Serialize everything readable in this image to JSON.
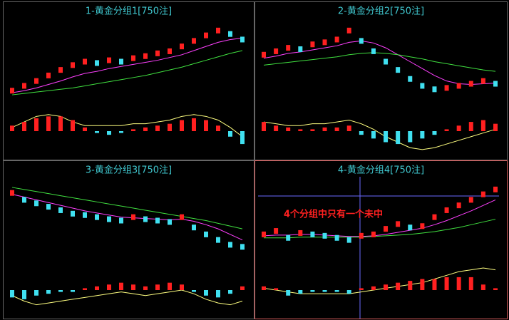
{
  "chart_data": [
    {
      "type": "stock",
      "title": "1-黄金分组1[750注]",
      "ylim": [
        0,
        100
      ],
      "y2lim": [
        -12,
        12
      ],
      "series": [
        {
          "name": "price",
          "color": "#ff2020",
          "values": [
            8,
            15,
            22,
            30,
            38,
            45,
            50,
            48,
            52,
            50,
            55,
            58,
            62,
            65,
            72,
            80,
            88,
            95,
            90,
            82
          ]
        },
        {
          "name": "ma1",
          "color": "#ff40ff",
          "values": [
            5,
            8,
            12,
            17,
            22,
            28,
            33,
            36,
            40,
            43,
            46,
            49,
            52,
            56,
            60,
            66,
            72,
            78,
            82,
            84
          ]
        },
        {
          "name": "ma2",
          "color": "#40e040",
          "values": [
            2,
            4,
            6,
            8,
            10,
            12,
            15,
            18,
            21,
            24,
            27,
            30,
            34,
            38,
            42,
            47,
            52,
            57,
            62,
            66
          ]
        },
        {
          "name": "macd",
          "color": "#ff2020",
          "axis": "y2",
          "values": [
            3,
            5,
            7,
            8,
            8,
            6,
            2,
            -1,
            -2,
            -1,
            1,
            2,
            3,
            4,
            6,
            7,
            6,
            3,
            -3,
            -7
          ]
        },
        {
          "name": "dif",
          "color": "#ffff80",
          "axis": "y2",
          "values": [
            2,
            5,
            8,
            9,
            8,
            5,
            3,
            3,
            3,
            3,
            4,
            4,
            5,
            6,
            8,
            9,
            8,
            6,
            2,
            -3
          ]
        }
      ]
    },
    {
      "type": "stock",
      "title": "2-黄金分组2[750注]",
      "ylim": [
        0,
        100
      ],
      "y2lim": [
        -12,
        12
      ],
      "series": [
        {
          "name": "price",
          "color": "#ff2020",
          "values": [
            60,
            65,
            70,
            68,
            75,
            78,
            82,
            95,
            80,
            65,
            50,
            38,
            25,
            15,
            10,
            12,
            15,
            18,
            22,
            18
          ]
        },
        {
          "name": "ma1",
          "color": "#ff40ff",
          "values": [
            55,
            58,
            62,
            64,
            67,
            70,
            73,
            78,
            80,
            77,
            70,
            60,
            50,
            40,
            30,
            22,
            18,
            17,
            18,
            19
          ]
        },
        {
          "name": "ma2",
          "color": "#40e040",
          "values": [
            45,
            47,
            49,
            51,
            53,
            55,
            57,
            60,
            62,
            63,
            62,
            60,
            57,
            54,
            50,
            47,
            44,
            41,
            38,
            36
          ]
        },
        {
          "name": "macd",
          "color": "#ff2020",
          "axis": "y2",
          "values": [
            5,
            3,
            2,
            1,
            1,
            2,
            2,
            3,
            -2,
            -4,
            -6,
            -7,
            -6,
            -4,
            -2,
            1,
            3,
            5,
            6,
            4
          ]
        },
        {
          "name": "dif",
          "color": "#ffff80",
          "axis": "y2",
          "values": [
            5,
            4,
            3,
            3,
            4,
            4,
            5,
            6,
            4,
            1,
            -3,
            -6,
            -9,
            -10,
            -9,
            -7,
            -5,
            -3,
            -1,
            1
          ]
        }
      ]
    },
    {
      "type": "stock",
      "title": "3-黄金分组3[750注]",
      "ylim": [
        0,
        100
      ],
      "y2lim": [
        -12,
        12
      ],
      "series": [
        {
          "name": "price",
          "color": "#ff2020",
          "values": [
            90,
            80,
            75,
            70,
            65,
            60,
            58,
            55,
            52,
            50,
            55,
            52,
            50,
            48,
            55,
            40,
            30,
            22,
            15,
            12
          ]
        },
        {
          "name": "ma1",
          "color": "#ff40ff",
          "values": [
            88,
            84,
            80,
            76,
            72,
            68,
            64,
            61,
            58,
            55,
            54,
            53,
            52,
            51,
            52,
            49,
            44,
            38,
            30,
            22
          ]
        },
        {
          "name": "ma2",
          "color": "#40e040",
          "values": [
            98,
            95,
            92,
            89,
            86,
            83,
            80,
            77,
            74,
            71,
            68,
            65,
            62,
            59,
            56,
            53,
            50,
            46,
            42,
            38
          ]
        },
        {
          "name": "macd",
          "color": "#ff2020",
          "axis": "y2",
          "values": [
            -4,
            -5,
            -3,
            -2,
            -1,
            -1,
            1,
            2,
            3,
            4,
            3,
            2,
            3,
            4,
            3,
            -1,
            -3,
            -4,
            -2,
            2
          ]
        },
        {
          "name": "dif",
          "color": "#ffff80",
          "axis": "y2",
          "values": [
            -3,
            -6,
            -8,
            -7,
            -6,
            -5,
            -4,
            -3,
            -2,
            -1,
            -2,
            -3,
            -2,
            -1,
            0,
            -2,
            -5,
            -7,
            -8,
            -6
          ]
        }
      ]
    },
    {
      "type": "stock",
      "title": "4-黄金分组4[750注]",
      "annotation": "4个分组中只有一个未中",
      "ylim": [
        0,
        100
      ],
      "y2lim": [
        -12,
        12
      ],
      "series": [
        {
          "name": "price",
          "color": "#ff2020",
          "values": [
            30,
            35,
            25,
            32,
            30,
            28,
            25,
            22,
            28,
            30,
            38,
            45,
            40,
            42,
            55,
            65,
            72,
            80,
            88,
            95
          ]
        },
        {
          "name": "ma1",
          "color": "#ff40ff",
          "values": [
            28,
            29,
            29,
            30,
            30,
            29,
            28,
            27,
            27,
            28,
            30,
            33,
            36,
            39,
            44,
            50,
            57,
            64,
            72,
            80
          ]
        },
        {
          "name": "ma2",
          "color": "#40e040",
          "values": [
            25,
            25,
            25,
            26,
            26,
            26,
            26,
            26,
            26,
            27,
            28,
            29,
            30,
            32,
            34,
            37,
            40,
            44,
            48,
            52
          ]
        },
        {
          "name": "macd",
          "color": "#ff2020",
          "axis": "y2",
          "values": [
            2,
            1,
            -3,
            -2,
            -1,
            -1,
            -1,
            -2,
            1,
            2,
            3,
            4,
            5,
            6,
            6,
            7,
            7,
            7,
            3,
            1
          ]
        },
        {
          "name": "dif",
          "color": "#ffff80",
          "axis": "y2",
          "values": [
            1,
            0,
            -1,
            -2,
            -2,
            -2,
            -2,
            -2,
            -1,
            0,
            1,
            2,
            3,
            4,
            6,
            8,
            10,
            11,
            12,
            11
          ]
        }
      ]
    }
  ]
}
